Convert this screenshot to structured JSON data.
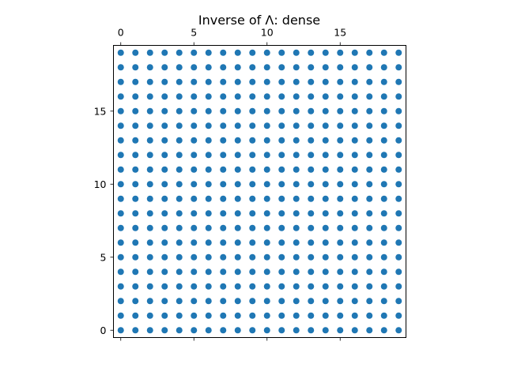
{
  "chart_data": {
    "type": "scatter",
    "title": "Inverse of Λ: dense",
    "xlabel": "",
    "ylabel": "",
    "rows": 20,
    "cols": 20,
    "points": "all entries nonzero (dense)",
    "xlim": [
      -0.5,
      19.5
    ],
    "ylim": [
      19.5,
      -0.5
    ],
    "x_ticks": [
      0,
      5,
      10,
      15
    ],
    "y_ticks": [
      0,
      5,
      10,
      15
    ],
    "x_axis_position": "top",
    "grid": false,
    "legend": "none",
    "marker_color": "#1f77b4"
  }
}
